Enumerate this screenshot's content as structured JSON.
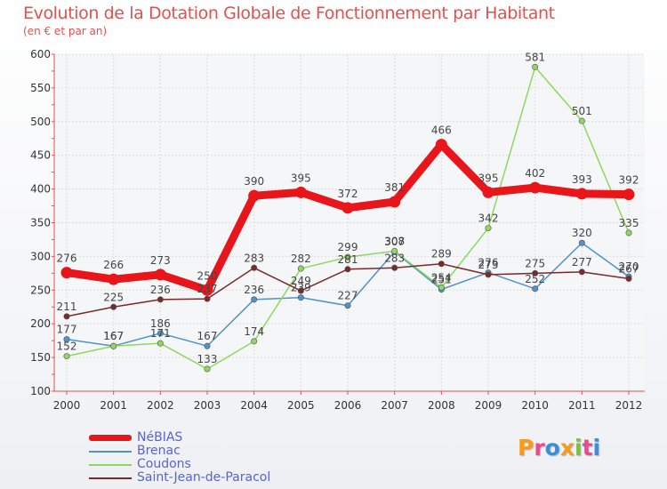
{
  "title": "Evolution de la Dotation Globale de Fonctionnement par Habitant",
  "subtitle": "(en € et par an)",
  "logo": {
    "text": "Proxiti",
    "letters": [
      {
        "ch": "P",
        "color": "#f39c1e"
      },
      {
        "ch": "r",
        "color": "#e94b8c"
      },
      {
        "ch": "o",
        "color": "#3a8fd8"
      },
      {
        "ch": "x",
        "color": "#f39c1e"
      },
      {
        "ch": "i",
        "color": "#7ac142"
      },
      {
        "ch": "t",
        "color": "#e94b8c"
      },
      {
        "ch": "i",
        "color": "#3a8fd8"
      }
    ]
  },
  "chart_data": {
    "type": "line",
    "title": "Evolution de la Dotation Globale de Fonctionnement par Habitant",
    "ylabel": "(en € et par an)",
    "xlabel": "",
    "categories": [
      "2000",
      "2001",
      "2002",
      "2003",
      "2004",
      "2005",
      "2006",
      "2007",
      "2008",
      "2009",
      "2010",
      "2011",
      "2012"
    ],
    "ylim": [
      100,
      600
    ],
    "yticks": [
      100,
      150,
      200,
      250,
      300,
      350,
      400,
      450,
      500,
      550,
      600
    ],
    "grid": true,
    "legend_position": "bottom-left",
    "series": [
      {
        "name": "NéBIAS",
        "color": "#e8161b",
        "emphasis": true,
        "values": [
          276,
          266,
          273,
          250,
          390,
          395,
          372,
          381,
          466,
          395,
          402,
          393,
          392
        ],
        "labels": [
          "276",
          "266",
          "273",
          "250",
          "390",
          "395",
          "372",
          "381",
          "466",
          "395",
          "402",
          "393",
          "392"
        ]
      },
      {
        "name": "Brenac",
        "color": "#4f93c9",
        "emphasis": false,
        "values": [
          177,
          167,
          186,
          167,
          236,
          239,
          227,
          307,
          251,
          276,
          252,
          320,
          270
        ],
        "labels": [
          "177",
          "167",
          "186",
          "167",
          "236",
          "239",
          "227",
          "307",
          "251",
          "276",
          "252",
          "320",
          "270"
        ]
      },
      {
        "name": "Coudons",
        "color": "#8fd860",
        "emphasis": false,
        "values": [
          152,
          167,
          171,
          133,
          174,
          282,
          299,
          308,
          254,
          342,
          581,
          501,
          335
        ],
        "labels": [
          "152",
          "167",
          "171",
          "133",
          "174",
          "282",
          "299",
          "308",
          "254",
          "342",
          "581",
          "501",
          "335"
        ]
      },
      {
        "name": "Saint-Jean-de-Paracol",
        "color": "#7a2a2a",
        "emphasis": false,
        "values": [
          211,
          225,
          236,
          237,
          283,
          249,
          281,
          283,
          289,
          273,
          275,
          277,
          267
        ],
        "labels": [
          "211",
          "225",
          "236",
          "237",
          "283",
          "249",
          "281",
          "283",
          "289",
          "273",
          "275",
          "277",
          "267"
        ]
      }
    ]
  }
}
